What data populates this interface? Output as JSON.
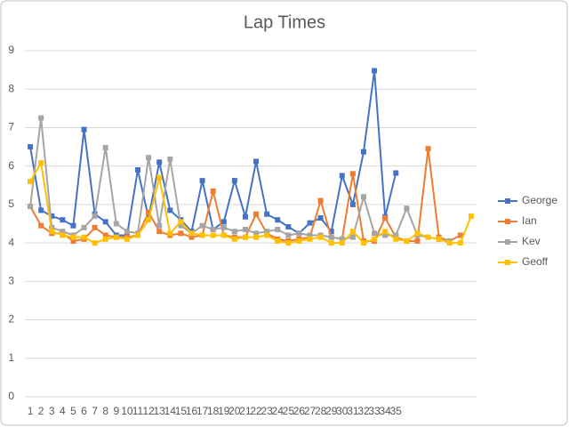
{
  "chart_data": {
    "type": "line",
    "title": "Lap Times",
    "categories": [
      1,
      2,
      3,
      4,
      5,
      6,
      7,
      8,
      9,
      10,
      11,
      12,
      13,
      14,
      15,
      16,
      17,
      18,
      19,
      20,
      21,
      22,
      23,
      24,
      25,
      26,
      27,
      28,
      29,
      30,
      31,
      32,
      33,
      34,
      35,
      null,
      null,
      null,
      null,
      null,
      null,
      null
    ],
    "series": [
      {
        "name": "George",
        "color": "#4472c4",
        "values": [
          6.5,
          4.85,
          4.7,
          4.6,
          4.45,
          6.95,
          4.75,
          4.55,
          4.2,
          4.2,
          5.9,
          4.65,
          6.1,
          4.85,
          4.6,
          4.3,
          5.62,
          4.35,
          4.55,
          5.62,
          4.68,
          6.12,
          4.75,
          4.6,
          4.42,
          4.25,
          4.52,
          4.65,
          4.3,
          5.75,
          5.0,
          6.37,
          8.48,
          4.68,
          5.82,
          null,
          null,
          null,
          null,
          null,
          null,
          null
        ]
      },
      {
        "name": "Ian",
        "color": "#ed7d31",
        "values": [
          4.95,
          4.45,
          4.25,
          4.25,
          4.05,
          4.1,
          4.4,
          4.2,
          4.15,
          4.15,
          4.2,
          4.8,
          4.3,
          4.2,
          4.25,
          4.15,
          4.2,
          5.35,
          4.2,
          4.15,
          4.15,
          4.75,
          4.25,
          4.1,
          4.05,
          4.1,
          4.15,
          5.1,
          4.15,
          4.1,
          5.8,
          4.05,
          4.05,
          4.65,
          4.15,
          4.05,
          4.05,
          6.45,
          4.15,
          4.05,
          4.2,
          null
        ]
      },
      {
        "name": "Kev",
        "color": "#a5a5a5",
        "values": [
          4.95,
          7.25,
          4.4,
          4.3,
          4.2,
          4.4,
          4.7,
          6.48,
          4.5,
          4.3,
          4.25,
          6.22,
          4.45,
          6.18,
          4.45,
          4.25,
          4.45,
          4.35,
          4.4,
          4.3,
          4.35,
          4.25,
          4.3,
          4.35,
          4.2,
          4.25,
          4.2,
          4.2,
          4.15,
          4.1,
          4.15,
          5.2,
          4.25,
          4.2,
          4.2,
          4.9,
          4.2,
          4.15,
          4.1,
          4.05,
          null,
          null
        ]
      },
      {
        "name": "Geoff",
        "color": "#ffc000",
        "values": [
          5.6,
          6.08,
          4.3,
          4.2,
          4.15,
          4.15,
          4.0,
          4.1,
          4.15,
          4.1,
          4.2,
          4.6,
          5.7,
          4.25,
          4.55,
          4.25,
          4.2,
          4.2,
          4.2,
          4.1,
          4.15,
          4.15,
          4.2,
          4.05,
          4.0,
          4.05,
          4.1,
          4.15,
          4.0,
          4.0,
          4.3,
          4.0,
          4.1,
          4.3,
          4.1,
          4.05,
          4.25,
          4.15,
          4.1,
          4.0,
          4.0,
          4.7
        ]
      }
    ],
    "ylim": [
      0,
      9
    ],
    "yticks": [
      0,
      1,
      2,
      3,
      4,
      5,
      6,
      7,
      8,
      9
    ],
    "grid": true,
    "legend": "right"
  }
}
